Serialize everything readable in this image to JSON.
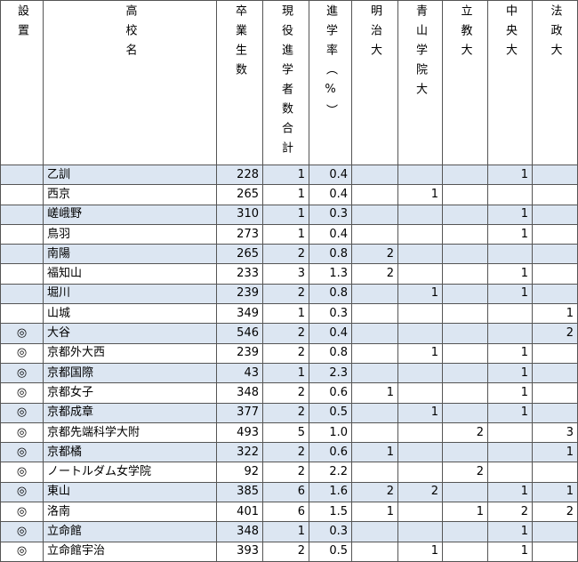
{
  "table": {
    "headers": [
      "設置",
      "高校名",
      "卒業生数",
      "現役進学者数合計",
      "進学率（%）",
      "明治大",
      "青山学院大",
      "立教大",
      "中央大",
      "法政大"
    ],
    "rows": [
      [
        null,
        "乙訓",
        "228",
        "1",
        "0.4",
        null,
        null,
        null,
        "1",
        null
      ],
      [
        null,
        "西京",
        "265",
        "1",
        "0.4",
        null,
        "1",
        null,
        null,
        null
      ],
      [
        null,
        "嵯峨野",
        "310",
        "1",
        "0.3",
        null,
        null,
        null,
        "1",
        null
      ],
      [
        null,
        "鳥羽",
        "273",
        "1",
        "0.4",
        null,
        null,
        null,
        "1",
        null
      ],
      [
        null,
        "南陽",
        "265",
        "2",
        "0.8",
        "2",
        null,
        null,
        null,
        null
      ],
      [
        null,
        "福知山",
        "233",
        "3",
        "1.3",
        "2",
        null,
        null,
        "1",
        null
      ],
      [
        null,
        "堀川",
        "239",
        "2",
        "0.8",
        null,
        "1",
        null,
        "1",
        null
      ],
      [
        null,
        "山城",
        "349",
        "1",
        "0.3",
        null,
        null,
        null,
        null,
        "1"
      ],
      [
        "◎",
        "大谷",
        "546",
        "2",
        "0.4",
        null,
        null,
        null,
        null,
        "2"
      ],
      [
        "◎",
        "京都外大西",
        "239",
        "2",
        "0.8",
        null,
        "1",
        null,
        "1",
        null
      ],
      [
        "◎",
        "京都国際",
        "43",
        "1",
        "2.3",
        null,
        null,
        null,
        "1",
        null
      ],
      [
        "◎",
        "京都女子",
        "348",
        "2",
        "0.6",
        "1",
        null,
        null,
        "1",
        null
      ],
      [
        "◎",
        "京都成章",
        "377",
        "2",
        "0.5",
        null,
        "1",
        null,
        "1",
        null
      ],
      [
        "◎",
        "京都先端科学大附",
        "493",
        "5",
        "1.0",
        null,
        null,
        "2",
        null,
        "3"
      ],
      [
        "◎",
        "京都橘",
        "322",
        "2",
        "0.6",
        "1",
        null,
        null,
        null,
        "1"
      ],
      [
        "◎",
        "ノートルダム女学院",
        "92",
        "2",
        "2.2",
        null,
        null,
        "2",
        null,
        null
      ],
      [
        "◎",
        "東山",
        "385",
        "6",
        "1.6",
        "2",
        "2",
        null,
        "1",
        "1"
      ],
      [
        "◎",
        "洛南",
        "401",
        "6",
        "1.5",
        "1",
        null,
        "1",
        "2",
        "2"
      ],
      [
        "◎",
        "立命館",
        "348",
        "1",
        "0.3",
        null,
        null,
        null,
        "1",
        null
      ],
      [
        "◎",
        "立命館宇治",
        "393",
        "2",
        "0.5",
        null,
        "1",
        null,
        "1",
        null
      ]
    ]
  }
}
